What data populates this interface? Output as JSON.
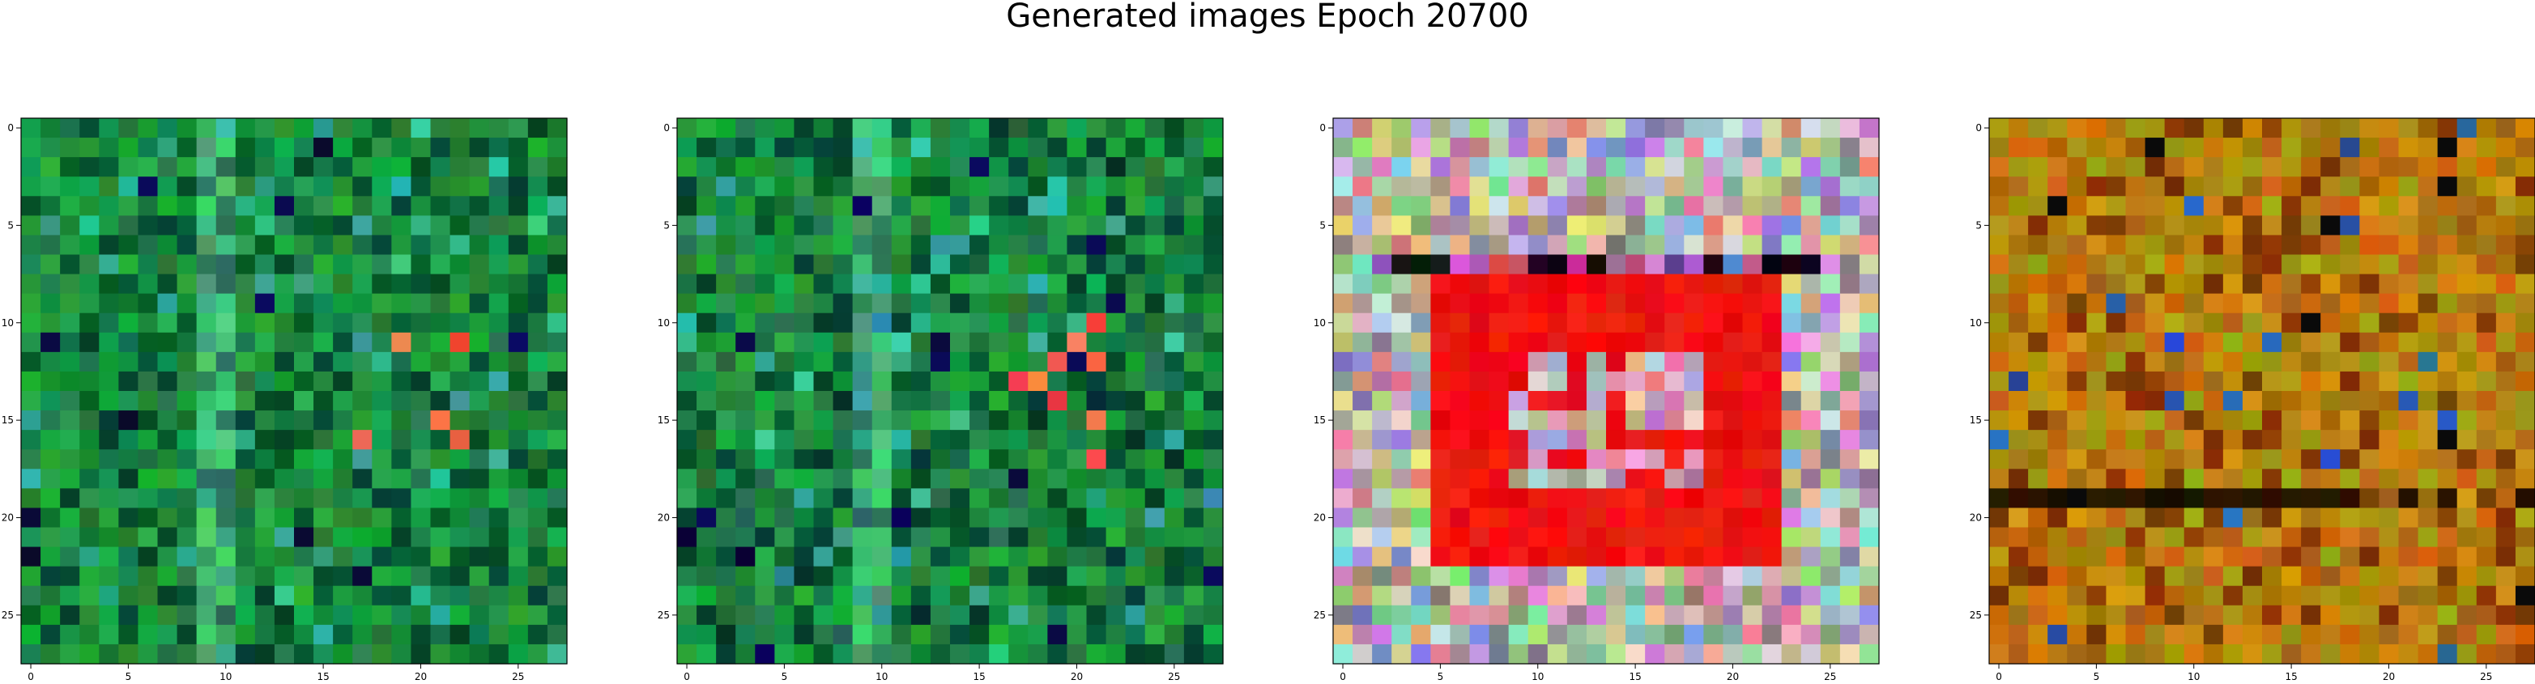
{
  "figure": {
    "title": "Generated images Epoch 20700",
    "panels": [
      {
        "name": "panel-1",
        "palette": "green",
        "x_ticks": [
          "0",
          "5",
          "10",
          "15",
          "20",
          "25"
        ],
        "y_ticks": [
          "0",
          "5",
          "10",
          "15",
          "20",
          "25"
        ]
      },
      {
        "name": "panel-2",
        "palette": "green",
        "x_ticks": [
          "0",
          "5",
          "10",
          "15",
          "20",
          "25"
        ],
        "y_ticks": [
          "0",
          "5",
          "10",
          "15",
          "20",
          "25"
        ]
      },
      {
        "name": "panel-3",
        "palette": "red-pastel",
        "x_ticks": [
          "0",
          "5",
          "10",
          "15",
          "20",
          "25"
        ],
        "y_ticks": [
          "0",
          "5",
          "10",
          "15",
          "20",
          "25"
        ]
      },
      {
        "name": "panel-4",
        "palette": "ochre",
        "x_ticks": [
          "0",
          "5",
          "10",
          "15",
          "20",
          "25"
        ],
        "y_ticks": [
          "0",
          "5",
          "10",
          "15",
          "20",
          "25"
        ]
      }
    ],
    "colors": {
      "green_base": "#1a8f3a",
      "red_base": "#ff1a1a",
      "ochre_base": "#c07a10",
      "axis": "#000000"
    }
  }
}
